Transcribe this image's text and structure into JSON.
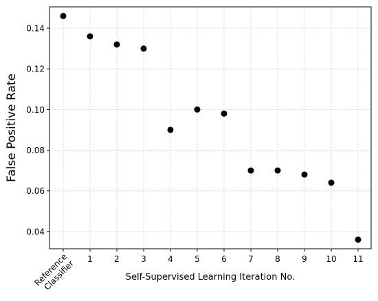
{
  "chart_data": {
    "type": "scatter",
    "title": "",
    "xlabel": "Self-Supervised Learning Iteration No.",
    "ylabel": "False Positive Rate",
    "categories": [
      "Reference Classifier",
      "1",
      "2",
      "3",
      "4",
      "5",
      "6",
      "7",
      "8",
      "9",
      "10",
      "11"
    ],
    "reference_label_lines": [
      "Reference",
      "Classifier"
    ],
    "values": [
      0.146,
      0.136,
      0.132,
      0.13,
      0.09,
      0.1,
      0.098,
      0.07,
      0.07,
      0.068,
      0.064,
      0.036
    ],
    "yticks": [
      0.04,
      0.06,
      0.08,
      0.1,
      0.12,
      0.14
    ],
    "ytick_labels": [
      "0.04",
      "0.06",
      "0.08",
      "0.10",
      "0.12",
      "0.14"
    ],
    "ylim": [
      0.0315,
      0.1505
    ],
    "grid": true,
    "grid_style": "dotted",
    "marker_color": "#000000",
    "grid_color": "#cccccc"
  }
}
